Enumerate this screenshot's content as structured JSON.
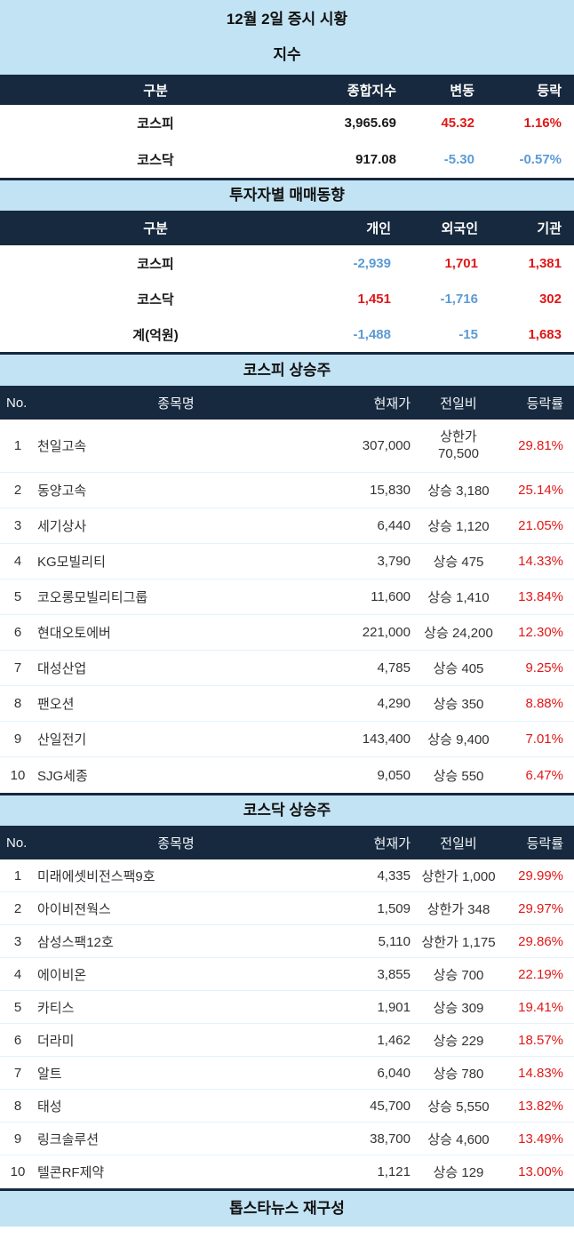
{
  "page_title": "12월 2일 증시 시황",
  "colors": {
    "band_bg": "#c2e3f3",
    "header_bg": "#17293e",
    "up_red": "#e01717",
    "down_blue": "#5b9bd5"
  },
  "index_table": {
    "title": "지수",
    "columns": [
      "구분",
      "종합지수",
      "변동",
      "등락"
    ],
    "rows": [
      {
        "name": "코스피",
        "index": "3,965.69",
        "change": "45.32",
        "rate": "1.16%",
        "tone": "up"
      },
      {
        "name": "코스닥",
        "index": "917.08",
        "change": "-5.30",
        "rate": "-0.57%",
        "tone": "down"
      }
    ]
  },
  "investor_table": {
    "title": "투자자별 매매동향",
    "columns": [
      "구분",
      "개인",
      "외국인",
      "기관"
    ],
    "rows": [
      {
        "name": "코스피",
        "values": [
          "-2,939",
          "1,701",
          "1,381"
        ],
        "tones": [
          "down",
          "up",
          "up"
        ]
      },
      {
        "name": "코스닥",
        "values": [
          "1,451",
          "-1,716",
          "302"
        ],
        "tones": [
          "up",
          "down",
          "up"
        ]
      },
      {
        "name": "계(억원)",
        "values": [
          "-1,488",
          "-15",
          "1,683"
        ],
        "tones": [
          "down",
          "down",
          "up"
        ]
      }
    ]
  },
  "kospi_table": {
    "title": "코스피 상승주",
    "columns": [
      "No.",
      "종목명",
      "현재가",
      "전일비",
      "등락률"
    ],
    "rows": [
      {
        "no": "1",
        "name": "천일고속",
        "price": "307,000",
        "change": "상한가 70,500",
        "change_wrap": true,
        "rate": "29.81%"
      },
      {
        "no": "2",
        "name": "동양고속",
        "price": "15,830",
        "change": "상승 3,180",
        "rate": "25.14%"
      },
      {
        "no": "3",
        "name": "세기상사",
        "price": "6,440",
        "change": "상승 1,120",
        "rate": "21.05%"
      },
      {
        "no": "4",
        "name": "KG모빌리티",
        "price": "3,790",
        "change": "상승 475",
        "rate": "14.33%"
      },
      {
        "no": "5",
        "name": "코오롱모빌리티그룹",
        "price": "11,600",
        "change": "상승 1,410",
        "rate": "13.84%"
      },
      {
        "no": "6",
        "name": "현대오토에버",
        "price": "221,000",
        "change": "상승 24,200",
        "rate": "12.30%"
      },
      {
        "no": "7",
        "name": "대성산업",
        "price": "4,785",
        "change": "상승 405",
        "rate": "9.25%"
      },
      {
        "no": "8",
        "name": "팬오션",
        "price": "4,290",
        "change": "상승 350",
        "rate": "8.88%"
      },
      {
        "no": "9",
        "name": "산일전기",
        "price": "143,400",
        "change": "상승 9,400",
        "rate": "7.01%"
      },
      {
        "no": "10",
        "name": "SJG세종",
        "price": "9,050",
        "change": "상승 550",
        "rate": "6.47%"
      }
    ]
  },
  "kosdaq_table": {
    "title": "코스닥 상승주",
    "columns": [
      "No.",
      "종목명",
      "현재가",
      "전일비",
      "등락률"
    ],
    "rows": [
      {
        "no": "1",
        "name": "미래에셋비전스팩9호",
        "price": "4,335",
        "change": "상한가 1,000",
        "rate": "29.99%"
      },
      {
        "no": "2",
        "name": "아이비젼웍스",
        "price": "1,509",
        "change": "상한가 348",
        "rate": "29.97%"
      },
      {
        "no": "3",
        "name": "삼성스팩12호",
        "price": "5,110",
        "change": "상한가 1,175",
        "rate": "29.86%"
      },
      {
        "no": "4",
        "name": "에이비온",
        "price": "3,855",
        "change": "상승 700",
        "rate": "22.19%"
      },
      {
        "no": "5",
        "name": "카티스",
        "price": "1,901",
        "change": "상승 309",
        "rate": "19.41%"
      },
      {
        "no": "6",
        "name": "더라미",
        "price": "1,462",
        "change": "상승 229",
        "rate": "18.57%"
      },
      {
        "no": "7",
        "name": "알트",
        "price": "6,040",
        "change": "상승 780",
        "rate": "14.83%"
      },
      {
        "no": "8",
        "name": "태성",
        "price": "45,700",
        "change": "상승 5,550",
        "rate": "13.82%"
      },
      {
        "no": "9",
        "name": "링크솔루션",
        "price": "38,700",
        "change": "상승 4,600",
        "rate": "13.49%"
      },
      {
        "no": "10",
        "name": "텔콘RF제약",
        "price": "1,121",
        "change": "상승 129",
        "rate": "13.00%"
      }
    ]
  },
  "footer": {
    "label": "톱스타뉴스 재구성"
  }
}
